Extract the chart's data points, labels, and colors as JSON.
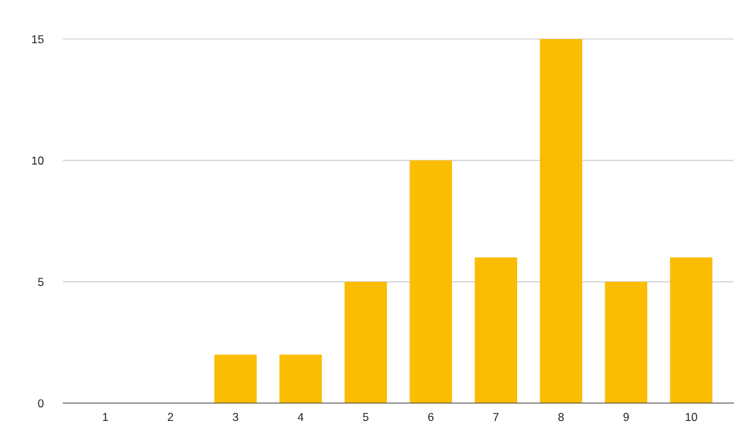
{
  "chart_data": {
    "type": "bar",
    "categories": [
      "1",
      "2",
      "3",
      "4",
      "5",
      "6",
      "7",
      "8",
      "9",
      "10"
    ],
    "values": [
      0,
      0,
      2,
      2,
      5,
      10,
      6,
      15,
      5,
      6
    ],
    "color": "#fbbc04",
    "ylim": [
      0,
      15
    ],
    "yticks": [
      0,
      5,
      10,
      15
    ],
    "grid": "y"
  }
}
